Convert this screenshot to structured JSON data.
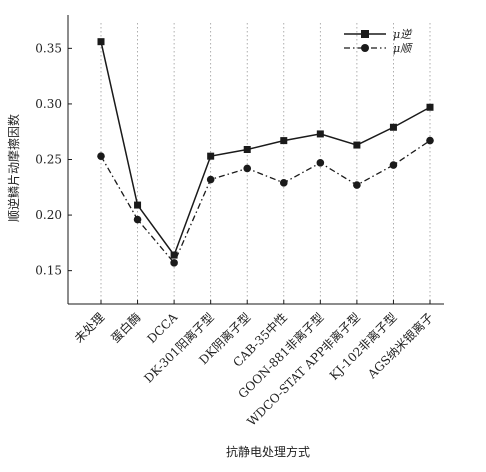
{
  "chart_data": {
    "type": "line",
    "xlabel": "抗静电处理方式",
    "ylabel": "顺逆鳞片动摩擦因数",
    "ylim": [
      0.12,
      0.38
    ],
    "yticks": [
      "0.15",
      "0.20",
      "0.25",
      "0.30",
      "0.35"
    ],
    "yticks_values": [
      0.15,
      0.2,
      0.25,
      0.3,
      0.35
    ],
    "categories": [
      "未处理",
      "蛋白酶",
      "DCCA",
      "DK-301阳离子型",
      "DK阴离子型",
      "CAB-35中性",
      "GOON-881非离子型",
      "WDCO-STAT APP非离子型",
      "KJ-102非离子型",
      "AGS纳米银离子"
    ],
    "series": [
      {
        "name": "μ逆",
        "values": [
          0.356,
          0.209,
          0.164,
          0.253,
          0.259,
          0.267,
          0.273,
          0.263,
          0.279,
          0.297
        ],
        "marker": "square",
        "line": "solid"
      },
      {
        "name": "μ顺",
        "values": [
          0.253,
          0.196,
          0.157,
          0.232,
          0.242,
          0.229,
          0.247,
          0.227,
          0.245,
          0.267
        ],
        "marker": "circle",
        "line": "dashdot"
      }
    ],
    "grid": "vertical-dotted",
    "legend": "top-right",
    "colors": {
      "line": "#1a1a1a",
      "grid": "#9a9a9a"
    }
  }
}
